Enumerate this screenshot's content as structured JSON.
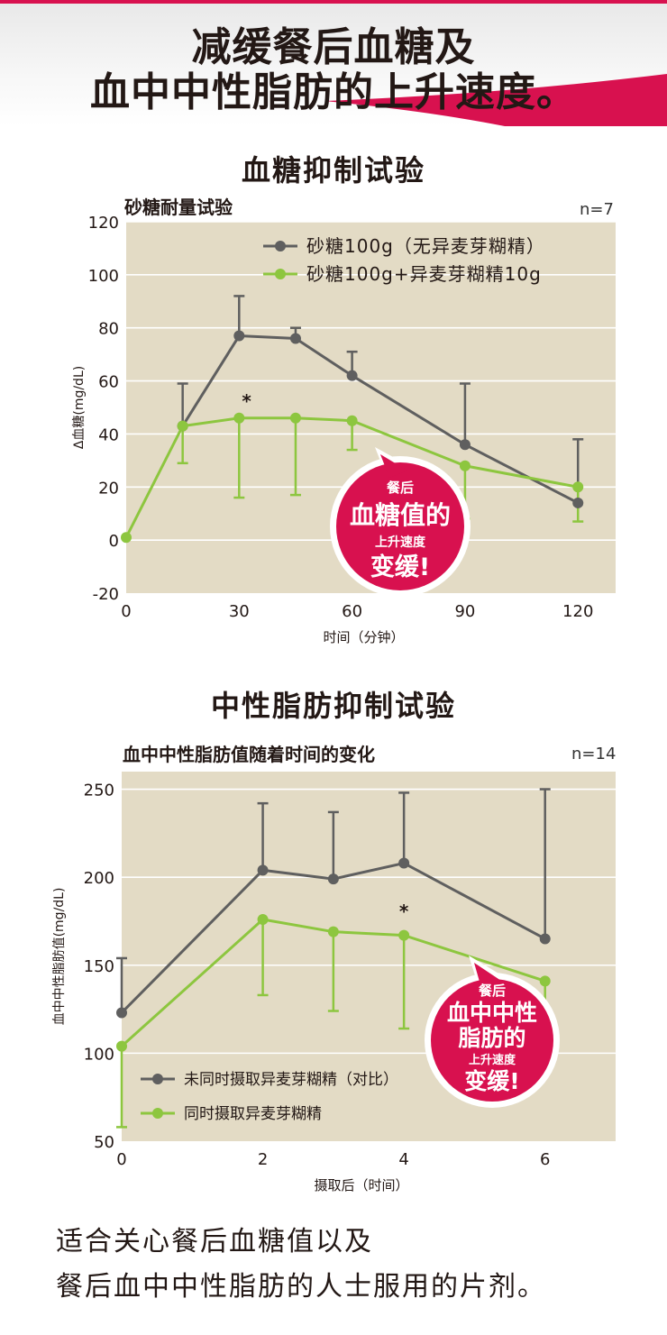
{
  "header": {
    "line1": "减缓餐后血糖及",
    "line2": "血中中性脂肪的上升速度。"
  },
  "glucose_section": {
    "title": "血糖抑制试验",
    "subtitle": "砂糖耐量试验",
    "n": "n=7",
    "badge": {
      "line1": "餐后",
      "line2": "血糖值的",
      "line3": "上升速度",
      "line4": "变缓!"
    }
  },
  "lipid_section": {
    "title": "中性脂肪抑制试验",
    "subtitle": "血中中性脂肪值随着时间的变化",
    "n": "n=14",
    "badge": {
      "line1": "餐后",
      "line2": "血中中性",
      "line3": "脂肪的",
      "line4": "上升速度",
      "line5": "变缓!"
    }
  },
  "footer": {
    "line1": "适合关心餐后血糖值以及",
    "line2": "餐后血中中性脂肪的人士服用的片剂。"
  },
  "colors": {
    "accent": "#d8114f",
    "plot_bg": "#e3dbc5",
    "gray_series": "#5f5f5f",
    "green_series": "#8dc63f"
  },
  "chart_data": [
    {
      "type": "line",
      "title": "血糖抑制试验",
      "subtitle": "砂糖耐量试验",
      "xlabel": "时间（分钟）",
      "ylabel": "Δ血糖(mg/dL)",
      "xlim": [
        0,
        130
      ],
      "ylim": [
        -20,
        120
      ],
      "xticks": [
        0,
        30,
        60,
        90,
        120
      ],
      "yticks": [
        -20,
        0,
        20,
        40,
        60,
        80,
        100,
        120
      ],
      "grid": true,
      "legend": "top",
      "annotations": [
        {
          "text": "*",
          "x": 32,
          "y": 50
        }
      ],
      "series": [
        {
          "name": "砂糖100g（无异麦芽糊精）",
          "color": "#5f5f5f",
          "x": [
            15,
            30,
            45,
            60,
            90,
            120
          ],
          "y": [
            43,
            77,
            76,
            62,
            36,
            14
          ],
          "err_upper": [
            59,
            92,
            80,
            71,
            59,
            38
          ],
          "err_lower": [
            null,
            null,
            null,
            null,
            null,
            null
          ]
        },
        {
          "name": "砂糖100g+异麦芽糊精10g",
          "color": "#8dc63f",
          "x": [
            0,
            15,
            30,
            45,
            60,
            90,
            120
          ],
          "y": [
            1,
            43,
            46,
            46,
            45,
            28,
            20
          ],
          "err_upper": [
            null,
            null,
            null,
            null,
            null,
            null,
            null
          ],
          "err_lower": [
            null,
            29,
            16,
            17,
            34,
            8,
            7
          ]
        }
      ]
    },
    {
      "type": "line",
      "title": "中性脂肪抑制试验",
      "subtitle": "血中中性脂肪值随着时间的变化",
      "xlabel": "摄取后（时间）",
      "ylabel": "血中中性脂肪值(mg/dL)",
      "xlim": [
        0,
        7
      ],
      "ylim": [
        50,
        260
      ],
      "xticks": [
        0,
        2,
        4,
        6
      ],
      "yticks": [
        50,
        100,
        150,
        200,
        250
      ],
      "grid": true,
      "legend": "bottom-left",
      "annotations": [
        {
          "text": "*",
          "x": 4,
          "y": 177
        }
      ],
      "series": [
        {
          "name": "未同时摄取异麦芽糊精（对比）",
          "color": "#5f5f5f",
          "x": [
            0,
            2,
            3,
            4,
            6
          ],
          "y": [
            123,
            204,
            199,
            208,
            165
          ],
          "err_upper": [
            154,
            242,
            237,
            248,
            250
          ],
          "err_lower": [
            null,
            null,
            null,
            null,
            null
          ]
        },
        {
          "name": "同时摄取异麦芽糊精",
          "color": "#8dc63f",
          "x": [
            0,
            2,
            3,
            4,
            6
          ],
          "y": [
            104,
            176,
            169,
            167,
            141
          ],
          "err_upper": [
            null,
            null,
            null,
            null,
            null
          ],
          "err_lower": [
            58,
            133,
            124,
            114,
            90
          ]
        }
      ]
    }
  ]
}
